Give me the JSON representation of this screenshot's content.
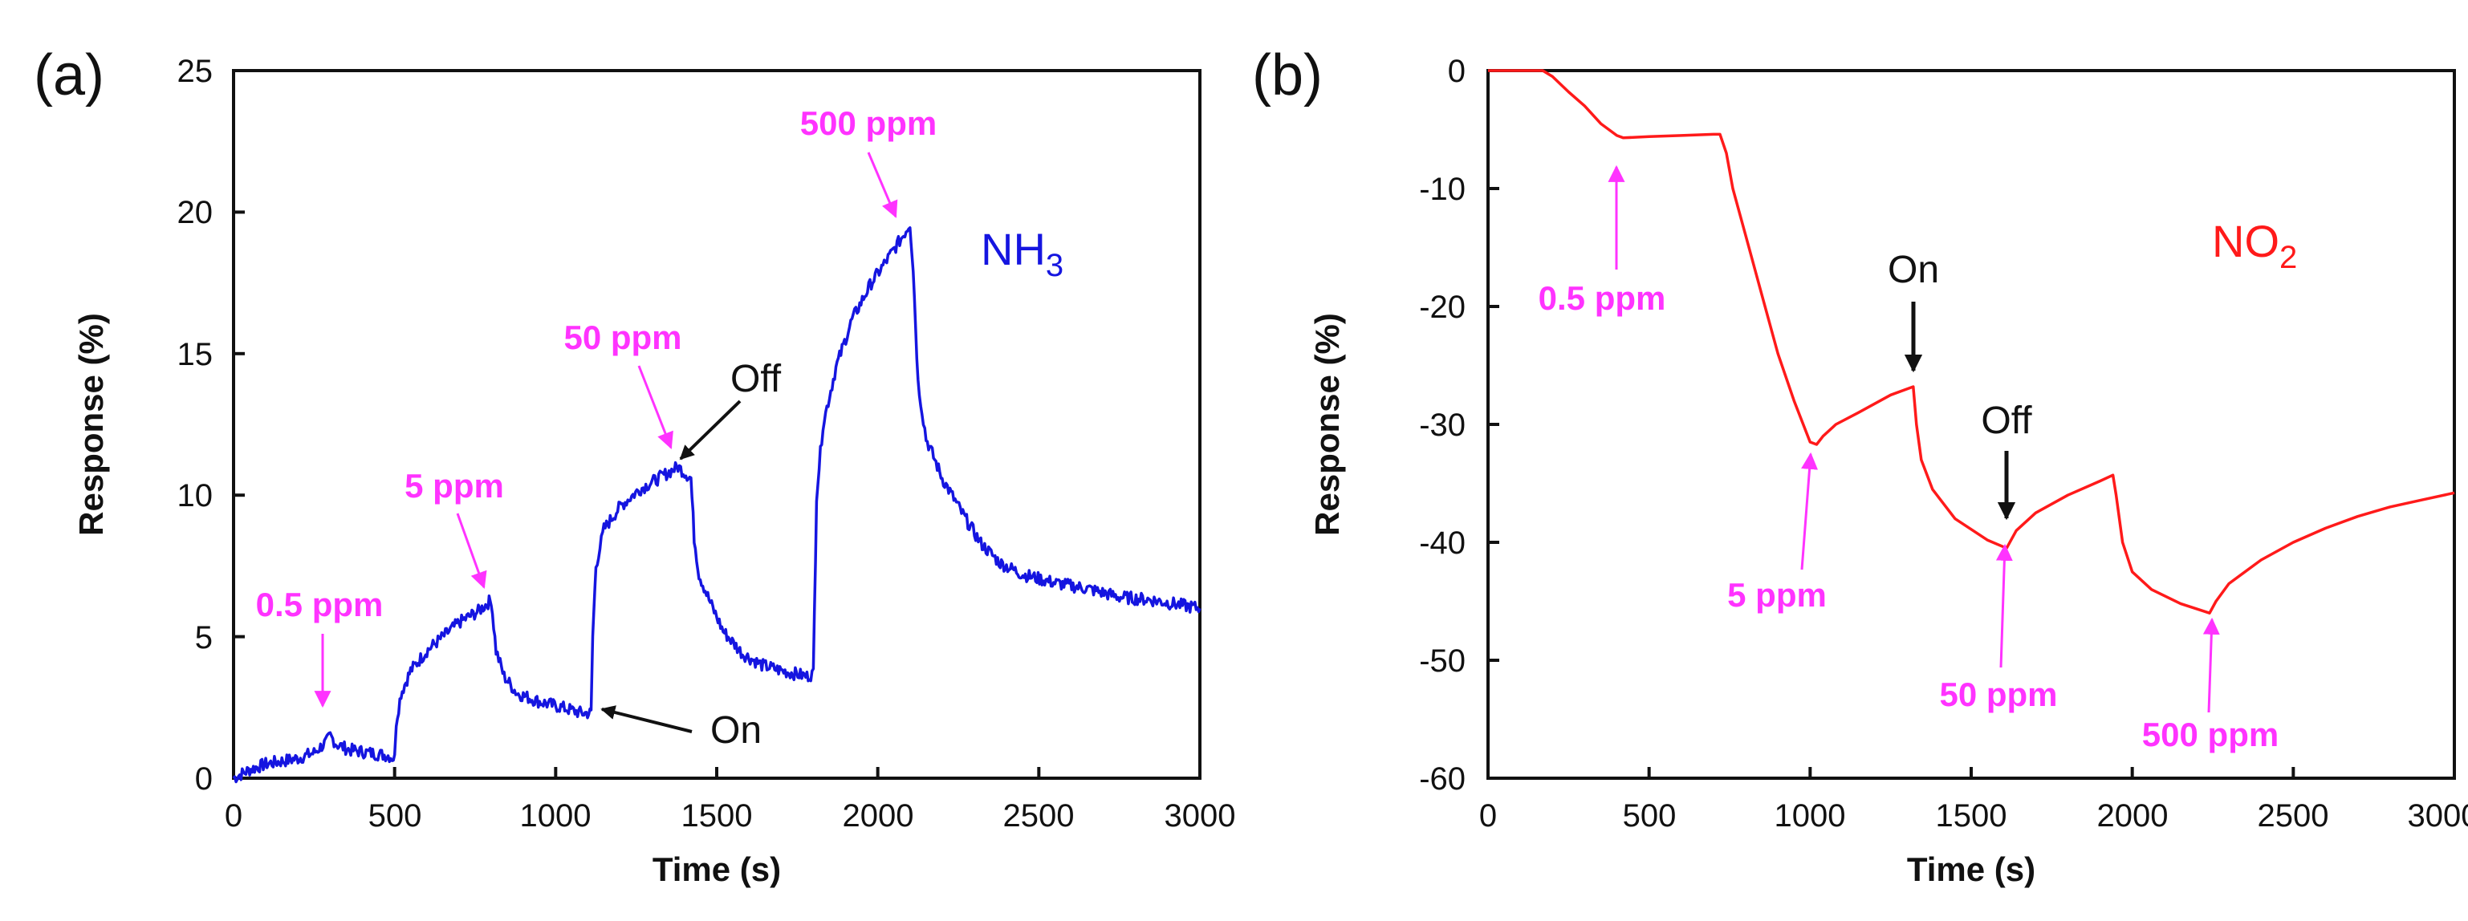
{
  "colors": {
    "nh3": "#1515e0",
    "no2": "#ff1a1a",
    "annotation": "#ff33ff",
    "black": "#111111"
  },
  "chart_data": [
    {
      "type": "line",
      "panel": "(a)",
      "gas_label": "NH",
      "gas_subscript": "3",
      "xlabel": "Time (s)",
      "ylabel": "Response (%)",
      "xlim": [
        0,
        3000
      ],
      "ylim": [
        0,
        25
      ],
      "xticks": [
        "0",
        "500",
        "1000",
        "1500",
        "2000",
        "2500",
        "3000"
      ],
      "yticks": [
        "0",
        "5",
        "10",
        "15",
        "20",
        "25"
      ],
      "series": [
        {
          "name": "NH3",
          "points": [
            [
              0,
              0
            ],
            [
              50,
              0.3
            ],
            [
              100,
              0.5
            ],
            [
              150,
              0.6
            ],
            [
              200,
              0.7
            ],
            [
              250,
              0.9
            ],
            [
              290,
              1.3
            ],
            [
              300,
              1.5
            ],
            [
              320,
              1.2
            ],
            [
              360,
              1.0
            ],
            [
              420,
              0.9
            ],
            [
              480,
              0.8
            ],
            [
              500,
              0.7
            ],
            [
              505,
              2.0
            ],
            [
              520,
              3.0
            ],
            [
              550,
              3.8
            ],
            [
              600,
              4.5
            ],
            [
              650,
              5.0
            ],
            [
              700,
              5.5
            ],
            [
              760,
              5.9
            ],
            [
              790,
              6.2
            ],
            [
              800,
              6.3
            ],
            [
              815,
              4.5
            ],
            [
              840,
              3.6
            ],
            [
              880,
              3.0
            ],
            [
              950,
              2.7
            ],
            [
              1020,
              2.5
            ],
            [
              1080,
              2.3
            ],
            [
              1110,
              2.3
            ],
            [
              1115,
              5.0
            ],
            [
              1125,
              7.5
            ],
            [
              1150,
              8.8
            ],
            [
              1200,
              9.6
            ],
            [
              1260,
              10.2
            ],
            [
              1320,
              10.6
            ],
            [
              1380,
              11.0
            ],
            [
              1420,
              10.6
            ],
            [
              1430,
              8.5
            ],
            [
              1445,
              7.2
            ],
            [
              1480,
              6.2
            ],
            [
              1520,
              5.2
            ],
            [
              1580,
              4.4
            ],
            [
              1640,
              4.0
            ],
            [
              1700,
              3.8
            ],
            [
              1780,
              3.6
            ],
            [
              1800,
              3.7
            ],
            [
              1810,
              10.0
            ],
            [
              1830,
              12.5
            ],
            [
              1870,
              14.5
            ],
            [
              1920,
              16.2
            ],
            [
              1980,
              17.5
            ],
            [
              2040,
              18.5
            ],
            [
              2080,
              19.2
            ],
            [
              2100,
              19.6
            ],
            [
              2110,
              18.0
            ],
            [
              2125,
              14.0
            ],
            [
              2150,
              12.0
            ],
            [
              2200,
              10.6
            ],
            [
              2260,
              9.4
            ],
            [
              2320,
              8.3
            ],
            [
              2380,
              7.6
            ],
            [
              2450,
              7.2
            ],
            [
              2550,
              6.9
            ],
            [
              2650,
              6.7
            ],
            [
              2750,
              6.4
            ],
            [
              2850,
              6.3
            ],
            [
              2950,
              6.1
            ],
            [
              3000,
              6.0
            ]
          ]
        }
      ],
      "annotations": [
        {
          "text": "0.5 ppm",
          "color": "magenta"
        },
        {
          "text": "5 ppm",
          "color": "magenta"
        },
        {
          "text": "50 ppm",
          "color": "magenta"
        },
        {
          "text": "500 ppm",
          "color": "magenta"
        },
        {
          "text": "Off",
          "color": "black"
        },
        {
          "text": "On",
          "color": "black"
        }
      ]
    },
    {
      "type": "line",
      "panel": "(b)",
      "gas_label": "NO",
      "gas_subscript": "2",
      "xlabel": "Time (s)",
      "ylabel": "Response (%)",
      "xlim": [
        0,
        3000
      ],
      "ylim": [
        -60,
        0
      ],
      "xticks": [
        "0",
        "500",
        "1000",
        "1500",
        "2000",
        "2500",
        "3000"
      ],
      "yticks": [
        "0",
        "-10",
        "-20",
        "-30",
        "-40",
        "-50",
        "-60"
      ],
      "series": [
        {
          "name": "NO2",
          "points": [
            [
              0,
              0
            ],
            [
              100,
              0
            ],
            [
              170,
              0
            ],
            [
              200,
              -0.5
            ],
            [
              250,
              -1.8
            ],
            [
              300,
              -3
            ],
            [
              350,
              -4.5
            ],
            [
              400,
              -5.5
            ],
            [
              420,
              -5.7
            ],
            [
              500,
              -5.6
            ],
            [
              600,
              -5.5
            ],
            [
              700,
              -5.4
            ],
            [
              720,
              -5.4
            ],
            [
              740,
              -7
            ],
            [
              760,
              -10
            ],
            [
              800,
              -14
            ],
            [
              850,
              -19
            ],
            [
              900,
              -24
            ],
            [
              950,
              -28
            ],
            [
              1000,
              -31.5
            ],
            [
              1020,
              -31.7
            ],
            [
              1040,
              -31
            ],
            [
              1080,
              -30
            ],
            [
              1150,
              -29
            ],
            [
              1250,
              -27.5
            ],
            [
              1320,
              -26.8
            ],
            [
              1330,
              -30
            ],
            [
              1345,
              -33
            ],
            [
              1380,
              -35.5
            ],
            [
              1450,
              -38
            ],
            [
              1550,
              -39.8
            ],
            [
              1610,
              -40.5
            ],
            [
              1640,
              -39
            ],
            [
              1700,
              -37.5
            ],
            [
              1800,
              -36
            ],
            [
              1900,
              -34.8
            ],
            [
              1940,
              -34.3
            ],
            [
              1950,
              -36
            ],
            [
              1970,
              -40
            ],
            [
              2000,
              -42.5
            ],
            [
              2060,
              -44
            ],
            [
              2150,
              -45.2
            ],
            [
              2240,
              -46
            ],
            [
              2260,
              -45
            ],
            [
              2300,
              -43.5
            ],
            [
              2400,
              -41.5
            ],
            [
              2500,
              -40
            ],
            [
              2600,
              -38.8
            ],
            [
              2700,
              -37.8
            ],
            [
              2800,
              -37
            ],
            [
              2900,
              -36.4
            ],
            [
              3000,
              -35.8
            ]
          ]
        }
      ],
      "annotations": [
        {
          "text": "0.5 ppm",
          "color": "magenta"
        },
        {
          "text": "5 ppm",
          "color": "magenta"
        },
        {
          "text": "50 ppm",
          "color": "magenta"
        },
        {
          "text": "500 ppm",
          "color": "magenta"
        },
        {
          "text": "On",
          "color": "black"
        },
        {
          "text": "Off",
          "color": "black"
        }
      ]
    }
  ]
}
